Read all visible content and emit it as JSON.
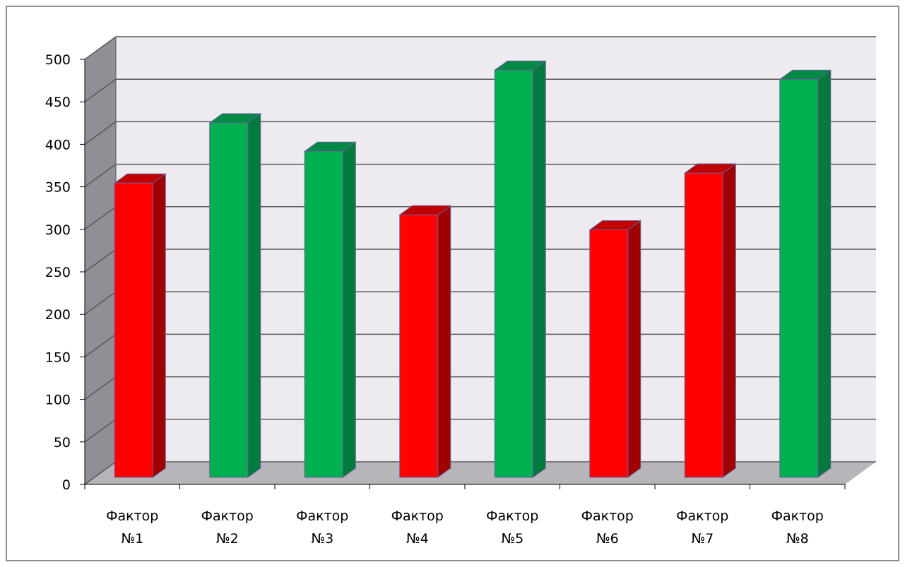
{
  "chart_data": {
    "type": "bar",
    "style": "3d-column",
    "title": "",
    "xlabel": "",
    "ylabel": "",
    "ylim": [
      0,
      500
    ],
    "yticks": [
      0,
      50,
      100,
      150,
      200,
      250,
      300,
      350,
      400,
      450,
      500
    ],
    "grid": true,
    "legend": "none",
    "categories": [
      [
        "Фактор",
        "№1"
      ],
      [
        "Фактор",
        "№2"
      ],
      [
        "Фактор",
        "№3"
      ],
      [
        "Фактор",
        "№4"
      ],
      [
        "Фактор",
        "№5"
      ],
      [
        "Фактор",
        "№6"
      ],
      [
        "Фактор",
        "№7"
      ],
      [
        "Фактор",
        "№8"
      ]
    ],
    "values": [
      352,
      424,
      390,
      314,
      487,
      296,
      364,
      476
    ],
    "bar_colors": [
      "#ff0000",
      "#00b050",
      "#00b050",
      "#ff0000",
      "#00b050",
      "#ff0000",
      "#ff0000",
      "#00b050"
    ],
    "colors": {
      "red_front": "#ff0000",
      "red_side": "#a00000",
      "red_top": "#c00000",
      "green_front": "#00b050",
      "green_side": "#007a3d",
      "green_top": "#008a44",
      "wall": "#edebf0",
      "side_wall": "#8f8f96",
      "floor": "#b7b5ba",
      "gridline": "#595959",
      "bar_outline": "#6a5f9a"
    }
  }
}
